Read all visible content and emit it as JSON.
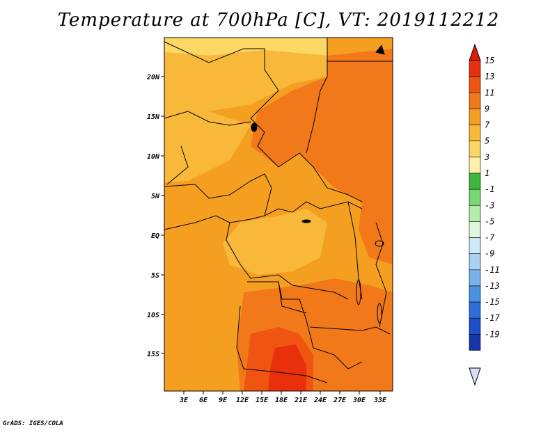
{
  "title": "Temperature at 700hPa [C], VT: 2019112212",
  "credit": "GrADS: IGES/COLA",
  "map": {
    "variable": "Temperature at 700hPa",
    "units": "C",
    "valid_time": "2019112212",
    "lat_labels": [
      "20N",
      "15N",
      "10N",
      "5N",
      "EQ",
      "5S",
      "10S",
      "15S"
    ],
    "lon_labels": [
      "3E",
      "6E",
      "9E",
      "12E",
      "15E",
      "18E",
      "21E",
      "24E",
      "27E",
      "30E",
      "33E"
    ]
  },
  "colorbar": {
    "levels": [
      "15",
      "13",
      "11",
      "9",
      "7",
      "5",
      "3",
      "1",
      "-1",
      "-3",
      "-5",
      "-7",
      "-9",
      "-11",
      "-13",
      "-15",
      "-17",
      "-19"
    ],
    "colors": [
      "#e8300c",
      "#ef5411",
      "#f1791a",
      "#f59f21",
      "#f8b93a",
      "#fbd765",
      "#fff1a8",
      "#3bb83b",
      "#78d870",
      "#b3ecab",
      "#e2f6dc",
      "#cde8f7",
      "#a9d2f2",
      "#78b3ec",
      "#4a92e3",
      "#2e6ed8",
      "#1d4fc7",
      "#1436a8",
      "#0a1f80"
    ],
    "top_cap_color": "#d61e08",
    "bottom_cap_color": "#d9dcf2"
  }
}
